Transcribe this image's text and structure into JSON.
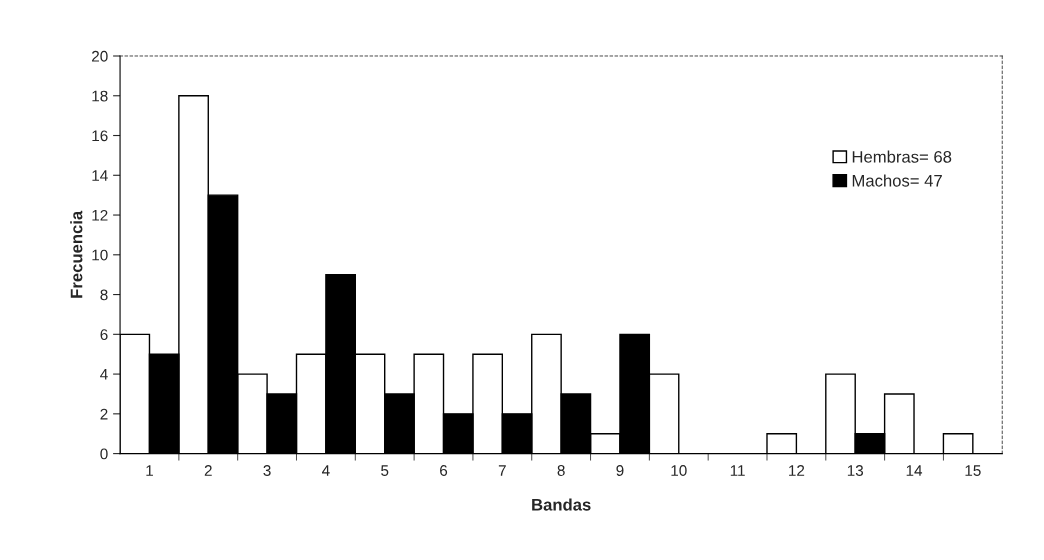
{
  "chart_data": {
    "type": "bar",
    "xlabel": "Bandas",
    "ylabel": "Frecuencia",
    "categories": [
      "1",
      "2",
      "3",
      "4",
      "5",
      "6",
      "7",
      "8",
      "9",
      "10",
      "11",
      "12",
      "13",
      "14",
      "15"
    ],
    "series": [
      {
        "name": "Hembras= 68",
        "color": "#ffffff",
        "values": [
          6,
          18,
          4,
          5,
          5,
          5,
          5,
          6,
          1,
          4,
          null,
          1,
          4,
          3,
          1
        ]
      },
      {
        "name": "Machos= 47",
        "color": "#000000",
        "values": [
          5,
          13,
          3,
          9,
          3,
          2,
          2,
          3,
          6,
          null,
          null,
          null,
          1,
          null,
          null
        ]
      }
    ],
    "ylim": [
      0,
      20
    ],
    "yticks": [
      0,
      2,
      4,
      6,
      8,
      10,
      12,
      14,
      16,
      18,
      20
    ],
    "grid": false,
    "legend": "top right"
  }
}
